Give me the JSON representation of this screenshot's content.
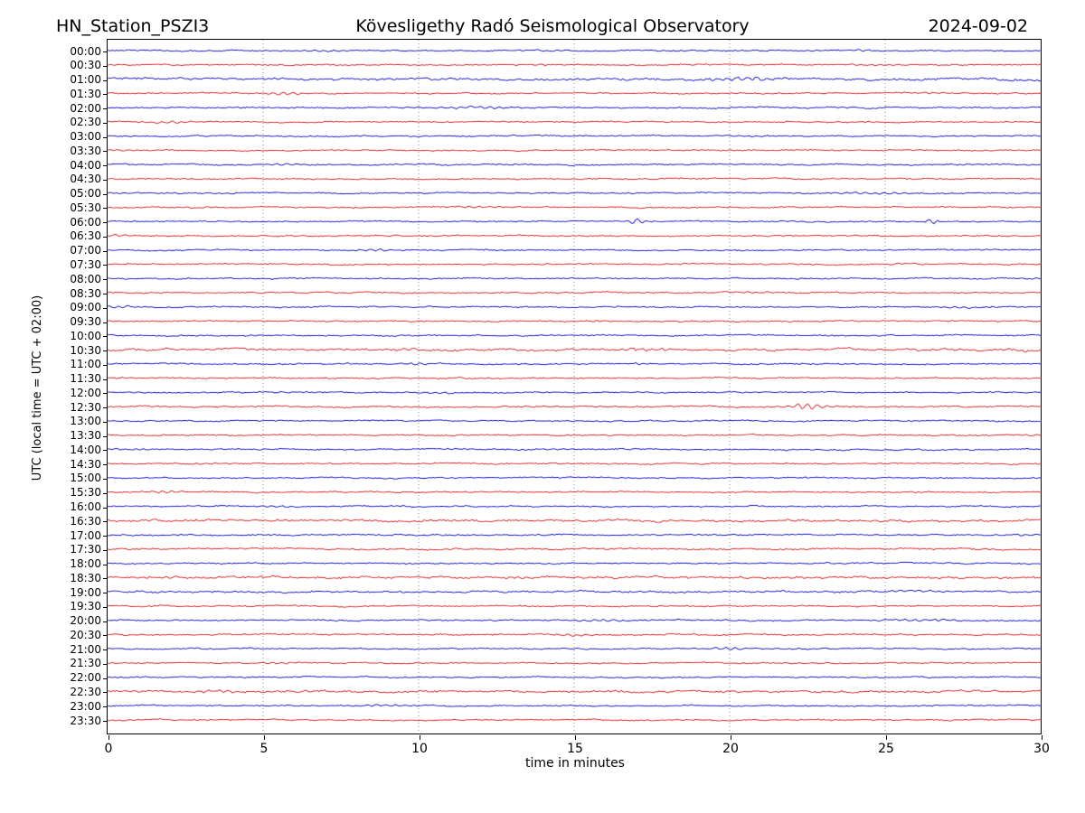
{
  "header": {
    "station": "HN_Station_PSZI3",
    "observatory": "Kövesligethy Radó Seismological Observatory",
    "date": "2024-09-02"
  },
  "chart_data": {
    "type": "line",
    "subtype": "helicorder-day-plot",
    "title_left": "HN_Station_PSZI3",
    "title_center": "Kövesligethy Radó Seismological Observatory",
    "title_right": "2024-09-02",
    "xlabel": "time in minutes",
    "ylabel": "UTC (local time = UTC + 02:00)",
    "xlim": [
      0,
      30
    ],
    "x_ticks": [
      0,
      5,
      10,
      15,
      20,
      25,
      30
    ],
    "minutes_per_row": 30,
    "grid": {
      "vertical_dotted_at": [
        5,
        10,
        15,
        20,
        25
      ],
      "color": "#909090"
    },
    "trace_colors": {
      "blue": "#1515d0",
      "red": "#e02525"
    },
    "rows": [
      {
        "label": "00:00",
        "color": "blue",
        "noise": 1.0,
        "events": [
          [
            6.5,
            0.8,
            0.5
          ],
          [
            14.0,
            0.6,
            0.4
          ],
          [
            24.3,
            0.5,
            0.4
          ]
        ]
      },
      {
        "label": "00:30",
        "color": "red",
        "noise": 1.0,
        "events": [
          [
            13.8,
            0.5,
            0.4
          ],
          [
            24.3,
            0.6,
            0.4
          ]
        ]
      },
      {
        "label": "01:00",
        "color": "blue",
        "noise": 1.6,
        "events": [
          [
            20.2,
            0.7,
            1.4
          ],
          [
            20.9,
            0.4,
            1.0
          ]
        ]
      },
      {
        "label": "01:30",
        "color": "red",
        "noise": 1.0,
        "events": [
          [
            5.6,
            0.5,
            1.2
          ],
          [
            26.5,
            0.5,
            0.6
          ]
        ]
      },
      {
        "label": "02:00",
        "color": "blue",
        "noise": 1.1,
        "events": [
          [
            12.0,
            0.7,
            1.0
          ]
        ]
      },
      {
        "label": "02:30",
        "color": "red",
        "noise": 1.0,
        "events": [
          [
            2.0,
            0.6,
            1.0
          ]
        ]
      },
      {
        "label": "03:00",
        "color": "blue",
        "noise": 1.0,
        "events": [
          [
            21.0,
            0.5,
            0.4
          ]
        ]
      },
      {
        "label": "03:30",
        "color": "red",
        "noise": 1.0,
        "events": [
          [
            0.5,
            0.4,
            0.5
          ]
        ]
      },
      {
        "label": "04:00",
        "color": "blue",
        "noise": 1.0,
        "events": [
          [
            5.7,
            0.5,
            1.1
          ]
        ]
      },
      {
        "label": "04:30",
        "color": "red",
        "noise": 1.0,
        "events": []
      },
      {
        "label": "05:00",
        "color": "blue",
        "noise": 1.0,
        "events": [
          [
            24.6,
            0.8,
            0.9
          ]
        ]
      },
      {
        "label": "05:30",
        "color": "red",
        "noise": 1.0,
        "events": [
          [
            2.9,
            0.4,
            0.5
          ],
          [
            12.0,
            0.6,
            0.9
          ]
        ]
      },
      {
        "label": "06:00",
        "color": "blue",
        "noise": 1.0,
        "events": [
          [
            17.0,
            0.15,
            2.8
          ],
          [
            26.5,
            0.15,
            2.6
          ]
        ]
      },
      {
        "label": "06:30",
        "color": "red",
        "noise": 1.0,
        "events": [
          [
            0.3,
            0.3,
            1.0
          ]
        ]
      },
      {
        "label": "07:00",
        "color": "blue",
        "noise": 1.0,
        "events": [
          [
            8.7,
            0.5,
            0.9
          ]
        ]
      },
      {
        "label": "07:30",
        "color": "red",
        "noise": 1.0,
        "events": [
          [
            14.2,
            0.3,
            0.5
          ],
          [
            18.5,
            0.3,
            0.5
          ],
          [
            22.2,
            0.3,
            0.4
          ],
          [
            25.5,
            0.3,
            0.5
          ]
        ]
      },
      {
        "label": "08:00",
        "color": "blue",
        "noise": 1.0,
        "events": []
      },
      {
        "label": "08:30",
        "color": "red",
        "noise": 1.0,
        "events": [
          [
            20.8,
            0.4,
            0.7
          ]
        ]
      },
      {
        "label": "09:00",
        "color": "blue",
        "noise": 1.0,
        "events": [
          [
            0.3,
            0.4,
            1.0
          ],
          [
            27.3,
            0.6,
            0.7
          ]
        ]
      },
      {
        "label": "09:30",
        "color": "red",
        "noise": 1.0,
        "events": [
          [
            15.7,
            0.4,
            0.4
          ]
        ]
      },
      {
        "label": "10:00",
        "color": "blue",
        "noise": 1.0,
        "events": []
      },
      {
        "label": "10:30",
        "color": "red",
        "noise": 1.7,
        "events": [
          [
            17.0,
            0.7,
            1.0
          ],
          [
            26.9,
            0.5,
            0.6
          ],
          [
            29.6,
            0.4,
            0.6
          ]
        ]
      },
      {
        "label": "11:00",
        "color": "blue",
        "noise": 1.1,
        "events": [
          [
            10.0,
            0.5,
            0.6
          ],
          [
            17.1,
            0.15,
            1.2
          ]
        ]
      },
      {
        "label": "11:30",
        "color": "red",
        "noise": 1.0,
        "events": [
          [
            0.5,
            0.4,
            0.8
          ]
        ]
      },
      {
        "label": "12:00",
        "color": "blue",
        "noise": 1.0,
        "events": [
          [
            10.7,
            0.5,
            0.7
          ]
        ]
      },
      {
        "label": "12:30",
        "color": "red",
        "noise": 1.1,
        "events": [
          [
            22.5,
            0.5,
            2.6
          ]
        ]
      },
      {
        "label": "13:00",
        "color": "blue",
        "noise": 1.0,
        "events": []
      },
      {
        "label": "13:30",
        "color": "red",
        "noise": 1.0,
        "events": [
          [
            29.7,
            0.3,
            0.6
          ]
        ]
      },
      {
        "label": "14:00",
        "color": "blue",
        "noise": 1.1,
        "events": [
          [
            0.8,
            0.4,
            0.6
          ],
          [
            14.5,
            0.5,
            0.5
          ]
        ]
      },
      {
        "label": "14:30",
        "color": "red",
        "noise": 1.0,
        "events": [
          [
            3.3,
            0.5,
            0.8
          ]
        ]
      },
      {
        "label": "15:00",
        "color": "blue",
        "noise": 1.0,
        "events": []
      },
      {
        "label": "15:30",
        "color": "red",
        "noise": 1.0,
        "events": [
          [
            1.8,
            0.5,
            0.9
          ]
        ]
      },
      {
        "label": "16:00",
        "color": "blue",
        "noise": 1.0,
        "events": [
          [
            5.5,
            0.6,
            0.8
          ]
        ]
      },
      {
        "label": "16:30",
        "color": "red",
        "noise": 1.7,
        "events": []
      },
      {
        "label": "17:00",
        "color": "blue",
        "noise": 1.1,
        "events": [
          [
            29.5,
            0.4,
            0.6
          ]
        ]
      },
      {
        "label": "17:30",
        "color": "red",
        "noise": 1.2,
        "events": [
          [
            16.4,
            0.4,
            0.6
          ]
        ]
      },
      {
        "label": "18:00",
        "color": "blue",
        "noise": 1.0,
        "events": []
      },
      {
        "label": "18:30",
        "color": "red",
        "noise": 1.7,
        "events": []
      },
      {
        "label": "19:00",
        "color": "blue",
        "noise": 1.4,
        "events": [
          [
            26.0,
            0.8,
            0.7
          ]
        ]
      },
      {
        "label": "19:30",
        "color": "red",
        "noise": 1.1,
        "events": []
      },
      {
        "label": "20:00",
        "color": "blue",
        "noise": 1.1,
        "events": [
          [
            15.7,
            0.6,
            0.9
          ],
          [
            26.2,
            0.8,
            0.8
          ]
        ]
      },
      {
        "label": "20:30",
        "color": "red",
        "noise": 1.1,
        "events": [
          [
            14.9,
            0.6,
            0.9
          ]
        ]
      },
      {
        "label": "21:00",
        "color": "blue",
        "noise": 1.0,
        "events": [
          [
            20.0,
            0.4,
            1.3
          ]
        ]
      },
      {
        "label": "21:30",
        "color": "red",
        "noise": 1.0,
        "events": [
          [
            5.5,
            0.4,
            0.8
          ]
        ]
      },
      {
        "label": "22:00",
        "color": "blue",
        "noise": 1.0,
        "events": []
      },
      {
        "label": "22:30",
        "color": "red",
        "noise": 1.6,
        "events": [
          [
            3.6,
            0.6,
            0.8
          ]
        ]
      },
      {
        "label": "23:00",
        "color": "blue",
        "noise": 1.0,
        "events": [
          [
            8.7,
            0.5,
            0.8
          ]
        ]
      },
      {
        "label": "23:30",
        "color": "red",
        "noise": 1.0,
        "events": []
      }
    ]
  }
}
